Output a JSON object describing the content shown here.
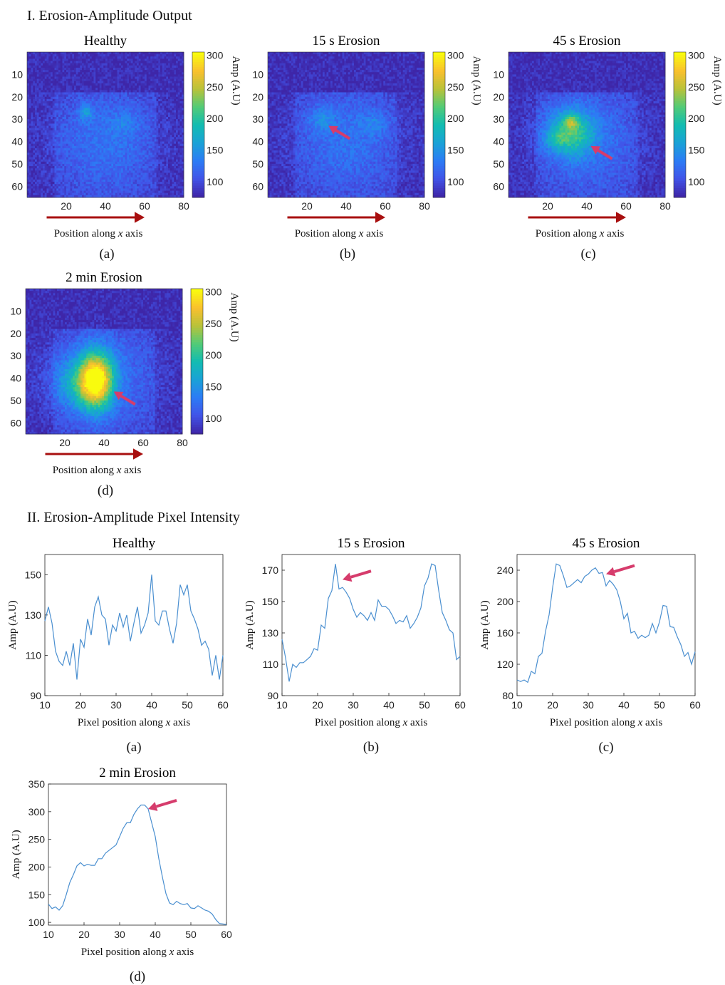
{
  "section_1_title": "I. Erosion-Amplitude Output",
  "section_2_title": "II. Erosion-Amplitude Pixel Intensity",
  "colors": {
    "arrow_dark_red": "#a80f0f",
    "arrow_pink": "#d63c6c",
    "line": "#4a8fd0",
    "axis": "#222222"
  },
  "colormap": [
    "#3e26a8",
    "#4154e8",
    "#2c7cf5",
    "#1aa2d6",
    "#12bcb1",
    "#52cb77",
    "#b8c23a",
    "#f9c02e",
    "#f9fb0e"
  ],
  "colorbar_label": "Amp (A.U)",
  "heatmap_xlabel_parts": [
    "Position along ",
    "x",
    " axis"
  ],
  "line_xlabel_parts": [
    "Pixel position along ",
    "x",
    " axis"
  ],
  "line_ylabel": "Amp (A.U)",
  "chart_data": [
    {
      "type": "heatmap",
      "title": "Healthy",
      "caption": "(a)",
      "xlim": [
        0,
        80
      ],
      "ylim": [
        0,
        65
      ],
      "xticks": [
        20,
        40,
        60,
        80
      ],
      "yticks": [
        10,
        20,
        30,
        40,
        50,
        60
      ],
      "colorbar": {
        "range": [
          75,
          305
        ],
        "ticks": [
          100,
          150,
          200,
          250,
          300
        ],
        "label": "Amp (A.U)"
      },
      "hotspots": [
        {
          "x": 30,
          "y": 27,
          "sx": 2.5,
          "sy": 2.5,
          "amp": 45
        },
        {
          "x": 50,
          "y": 32,
          "sx": 5,
          "sy": 4,
          "amp": 20
        }
      ],
      "direction_arrow": {
        "from_x": 10,
        "to_x": 60
      },
      "callout_arrow": null
    },
    {
      "type": "heatmap",
      "title": "15 s Erosion",
      "caption": "(b)",
      "xlim": [
        0,
        80
      ],
      "ylim": [
        0,
        65
      ],
      "xticks": [
        20,
        40,
        60,
        80
      ],
      "yticks": [
        10,
        20,
        30,
        40,
        50,
        60
      ],
      "colorbar": {
        "range": [
          75,
          305
        ],
        "ticks": [
          100,
          150,
          200,
          250,
          300
        ],
        "label": "Amp (A.U)"
      },
      "hotspots": [
        {
          "x": 28,
          "y": 30,
          "sx": 5,
          "sy": 4,
          "amp": 30
        },
        {
          "x": 54,
          "y": 32,
          "sx": 5,
          "sy": 4,
          "amp": 25
        }
      ],
      "direction_arrow": {
        "from_x": 10,
        "to_x": 60
      },
      "callout_arrow": {
        "x": 31,
        "y": 33
      }
    },
    {
      "type": "heatmap",
      "title": "45 s Erosion",
      "caption": "(c)",
      "xlim": [
        0,
        80
      ],
      "ylim": [
        0,
        65
      ],
      "xticks": [
        20,
        40,
        60,
        80
      ],
      "yticks": [
        10,
        20,
        30,
        40,
        50,
        60
      ],
      "colorbar": {
        "range": [
          75,
          305
        ],
        "ticks": [
          100,
          150,
          200,
          250,
          300
        ],
        "label": "Amp (A.U)"
      },
      "hotspots": [
        {
          "x": 32,
          "y": 36,
          "sx": 8,
          "sy": 7,
          "amp": 95
        },
        {
          "x": 32,
          "y": 31,
          "sx": 2.5,
          "sy": 2,
          "amp": 60
        },
        {
          "x": 24,
          "y": 39,
          "sx": 4,
          "sy": 3,
          "amp": 35
        }
      ],
      "direction_arrow": {
        "from_x": 10,
        "to_x": 60
      },
      "callout_arrow": {
        "x": 42,
        "y": 42
      }
    },
    {
      "type": "heatmap",
      "title": "2 min Erosion",
      "caption": "(d)",
      "xlim": [
        0,
        80
      ],
      "ylim": [
        0,
        65
      ],
      "xticks": [
        20,
        40,
        60,
        80
      ],
      "yticks": [
        10,
        20,
        30,
        40,
        50,
        60
      ],
      "colorbar": {
        "range": [
          75,
          305
        ],
        "ticks": [
          100,
          150,
          200,
          250,
          300
        ],
        "label": "Amp (A.U)"
      },
      "hotspots": [
        {
          "x": 36,
          "y": 41,
          "sx": 6,
          "sy": 8.5,
          "amp": 195
        },
        {
          "x": 26,
          "y": 42,
          "sx": 9,
          "sy": 8,
          "amp": 55
        }
      ],
      "direction_arrow": {
        "from_x": 10,
        "to_x": 60
      },
      "callout_arrow": {
        "x": 45,
        "y": 46
      }
    },
    {
      "type": "line",
      "title": "Healthy",
      "caption": "(a)",
      "xlim": [
        10,
        60
      ],
      "ylim": [
        90,
        160
      ],
      "xticks": [
        10,
        20,
        30,
        40,
        50,
        60
      ],
      "yticks": [
        90,
        110,
        130,
        150
      ],
      "xlabel": "Pixel position along x axis",
      "ylabel": "Amp (A.U)",
      "x": [
        10,
        11,
        12,
        13,
        14,
        15,
        16,
        17,
        18,
        19,
        20,
        21,
        22,
        23,
        24,
        25,
        26,
        27,
        28,
        29,
        30,
        31,
        32,
        33,
        34,
        35,
        36,
        37,
        38,
        39,
        40,
        41,
        42,
        43,
        44,
        45,
        46,
        47,
        48,
        49,
        50,
        51,
        52,
        53,
        54,
        55,
        56,
        57,
        58,
        59,
        60
      ],
      "y": [
        127,
        134,
        126,
        112,
        107,
        105,
        112,
        105,
        116,
        98,
        118,
        114,
        128,
        120,
        134,
        139,
        130,
        128,
        115,
        125,
        122,
        131,
        124,
        130,
        117,
        126,
        134,
        121,
        125,
        131,
        150,
        127,
        125,
        132,
        132,
        123,
        116,
        126,
        145,
        140,
        145,
        132,
        128,
        123,
        115,
        117,
        113,
        100,
        110,
        98,
        110
      ],
      "callout_arrow": null
    },
    {
      "type": "line",
      "title": "15 s Erosion",
      "caption": "(b)",
      "xlim": [
        10,
        60
      ],
      "ylim": [
        90,
        180
      ],
      "xticks": [
        10,
        20,
        30,
        40,
        50,
        60
      ],
      "yticks": [
        90,
        110,
        130,
        150,
        170
      ],
      "xlabel": "Pixel position along x axis",
      "ylabel": "Amp (A.U)",
      "x": [
        10,
        11,
        12,
        13,
        14,
        15,
        16,
        17,
        18,
        19,
        20,
        21,
        22,
        23,
        24,
        25,
        26,
        27,
        28,
        29,
        30,
        31,
        32,
        33,
        34,
        35,
        36,
        37,
        38,
        39,
        40,
        41,
        42,
        43,
        44,
        45,
        46,
        47,
        48,
        49,
        50,
        51,
        52,
        53,
        54,
        55,
        56,
        57,
        58,
        59,
        60
      ],
      "y": [
        126,
        114,
        99,
        110,
        108,
        111,
        111,
        113,
        115,
        120,
        119,
        135,
        133,
        152,
        157,
        174,
        158,
        159,
        156,
        152,
        145,
        140,
        143,
        141,
        138,
        143,
        138,
        151,
        147,
        147,
        145,
        141,
        136,
        138,
        137,
        141,
        133,
        136,
        140,
        146,
        160,
        165,
        174,
        173,
        157,
        143,
        138,
        132,
        130,
        113,
        115
      ],
      "callout_arrow": {
        "x": 27,
        "y": 164
      }
    },
    {
      "type": "line",
      "title": "45 s Erosion",
      "caption": "(c)",
      "xlim": [
        10,
        60
      ],
      "ylim": [
        80,
        260
      ],
      "xticks": [
        10,
        20,
        30,
        40,
        50,
        60
      ],
      "yticks": [
        80,
        120,
        160,
        200,
        240
      ],
      "xlabel": "Pixel position along x axis",
      "ylabel": "Amp (A.U)",
      "x": [
        10,
        11,
        12,
        13,
        14,
        15,
        16,
        17,
        18,
        19,
        20,
        21,
        22,
        23,
        24,
        25,
        26,
        27,
        28,
        29,
        30,
        31,
        32,
        33,
        34,
        35,
        36,
        37,
        38,
        39,
        40,
        41,
        42,
        43,
        44,
        45,
        46,
        47,
        48,
        49,
        50,
        51,
        52,
        53,
        54,
        55,
        56,
        57,
        58,
        59,
        60
      ],
      "y": [
        100,
        98,
        100,
        97,
        111,
        108,
        130,
        134,
        162,
        183,
        218,
        248,
        246,
        233,
        218,
        220,
        224,
        228,
        224,
        232,
        235,
        240,
        243,
        236,
        237,
        220,
        227,
        222,
        215,
        200,
        178,
        185,
        160,
        162,
        153,
        157,
        154,
        157,
        172,
        160,
        174,
        195,
        194,
        168,
        167,
        155,
        145,
        130,
        135,
        120,
        136
      ],
      "callout_arrow": {
        "x": 35,
        "y": 235
      }
    },
    {
      "type": "line",
      "title": "2 min Erosion",
      "caption": "(d)",
      "xlim": [
        10,
        60
      ],
      "ylim": [
        95,
        350
      ],
      "xticks": [
        10,
        20,
        30,
        40,
        50,
        60
      ],
      "yticks": [
        100,
        150,
        200,
        250,
        300,
        350
      ],
      "xlabel": "Pixel position along x axis",
      "ylabel": "Amp (A.U)",
      "x": [
        10,
        11,
        12,
        13,
        14,
        15,
        16,
        17,
        18,
        19,
        20,
        21,
        22,
        23,
        24,
        25,
        26,
        27,
        28,
        29,
        30,
        31,
        32,
        33,
        34,
        35,
        36,
        37,
        38,
        39,
        40,
        41,
        42,
        43,
        44,
        45,
        46,
        47,
        48,
        49,
        50,
        51,
        52,
        53,
        54,
        55,
        56,
        57,
        58,
        59,
        60
      ],
      "y": [
        133,
        125,
        128,
        122,
        130,
        150,
        172,
        186,
        202,
        208,
        202,
        205,
        203,
        203,
        215,
        215,
        225,
        230,
        235,
        240,
        255,
        270,
        280,
        280,
        295,
        305,
        312,
        312,
        305,
        280,
        255,
        215,
        182,
        152,
        135,
        132,
        138,
        134,
        132,
        134,
        126,
        125,
        130,
        126,
        122,
        120,
        115,
        105,
        98,
        97,
        96
      ],
      "callout_arrow": {
        "x": 38,
        "y": 305
      }
    }
  ]
}
